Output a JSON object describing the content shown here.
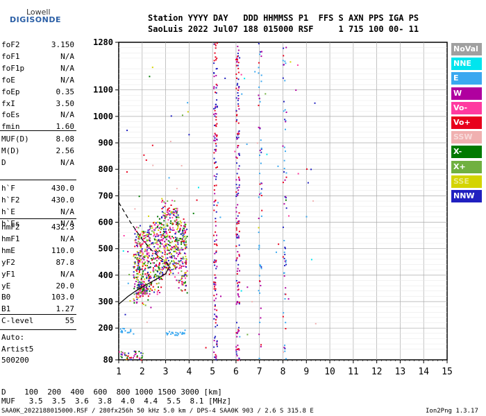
{
  "logo": {
    "top": "Lowell",
    "bottom": "DIGISONDE"
  },
  "header": {
    "labels": "Station YYYY DAY   DDD HHMMSS P1  FFS S AXN PPS IGA PS",
    "values": "SaoLuis 2022 Jul07 188 015000 RSF     1 715 100 00- 11"
  },
  "params_group1": [
    {
      "label": "foF2",
      "value": "3.150"
    },
    {
      "label": "foF1",
      "value": "N/A"
    },
    {
      "label": "foF1p",
      "value": "N/A"
    },
    {
      "label": "foE",
      "value": "N/A"
    },
    {
      "label": "foEp",
      "value": "0.35"
    },
    {
      "label": "fxI",
      "value": "3.50"
    },
    {
      "label": "foEs",
      "value": "N/A"
    },
    {
      "label": "fmin",
      "value": "1.60"
    }
  ],
  "params_group2": [
    {
      "label": "MUF(D)",
      "value": "8.08"
    },
    {
      "label": "M(D)",
      "value": "2.56"
    },
    {
      "label": "D",
      "value": "N/A"
    }
  ],
  "params_group3": [
    {
      "label": "h`F",
      "value": "430.0"
    },
    {
      "label": "h`F2",
      "value": "430.0"
    },
    {
      "label": "h`E",
      "value": "N/A"
    },
    {
      "label": "h`Es",
      "value": "N/A"
    }
  ],
  "params_group4": [
    {
      "label": "hmF2",
      "value": "432.3"
    },
    {
      "label": "hmF1",
      "value": "N/A"
    },
    {
      "label": "hmE",
      "value": "110.0"
    },
    {
      "label": "yF2",
      "value": "87.8"
    },
    {
      "label": "yF1",
      "value": "N/A"
    },
    {
      "label": "yE",
      "value": "20.0"
    },
    {
      "label": "B0",
      "value": "103.0"
    },
    {
      "label": "B1",
      "value": "1.27"
    }
  ],
  "clevel": {
    "label": "C-level",
    "value": "55"
  },
  "autoscale": {
    "line1": "Auto:",
    "line2": "Artist5",
    "line3": "500200"
  },
  "legend": [
    {
      "label": "NoVal",
      "color": "#a0a0a0"
    },
    {
      "label": "NNE",
      "color": "#00e5ee"
    },
    {
      "label": "E",
      "color": "#3aa8f0"
    },
    {
      "label": "W",
      "color": "#b0009f"
    },
    {
      "label": "Vo-",
      "color": "#ff3aa0"
    },
    {
      "label": "Vo+",
      "color": "#e8001c"
    },
    {
      "label": "SSW",
      "color": "#f0b0b0"
    },
    {
      "label": "X-",
      "color": "#007a00"
    },
    {
      "label": "X+",
      "color": "#70b040"
    },
    {
      "label": "SSE",
      "color": "#d4d400"
    },
    {
      "label": "NNW",
      "color": "#2020c0"
    }
  ],
  "footer": {
    "d_line": "D    100  200  400  600  800 1000 1500 3000 [km]",
    "muf_line": "MUF   3.5  3.5  3.6  3.8  4.0  4.4  5.5  8.1 [MHz]",
    "file_line": "SAA0K_2022188015000.RSF / 280fx256h 50 kHz 5.0 km / DPS-4 SAA0K 903 / 2.6 S 315.8 E",
    "version": "Ion2Png 1.3.17"
  },
  "chart_data": {
    "type": "scatter",
    "x_ticks": [
      "1",
      "2",
      "3",
      "4",
      "5",
      "6",
      "7",
      "8",
      "9",
      "10",
      "11",
      "12",
      "13",
      "14",
      "15"
    ],
    "y_ticks": [
      "80",
      "200",
      "300",
      "400",
      "500",
      "600",
      "700",
      "800",
      "900",
      "1000",
      "1100",
      "1280"
    ],
    "xlim": [
      1,
      15
    ],
    "ylim": [
      80,
      1280
    ],
    "grid": true,
    "x_unit": "MHz",
    "y_unit": "km",
    "traces": [
      {
        "name": "solid",
        "points": [
          [
            1.0,
            290
          ],
          [
            1.4,
            320
          ],
          [
            1.8,
            345
          ],
          [
            2.2,
            365
          ],
          [
            2.6,
            385
          ],
          [
            3.0,
            405
          ],
          [
            3.15,
            432
          ]
        ]
      },
      {
        "name": "dashed",
        "points": [
          [
            1.0,
            675
          ],
          [
            1.5,
            600
          ],
          [
            2.0,
            535
          ],
          [
            2.5,
            485
          ],
          [
            3.0,
            450
          ],
          [
            3.15,
            432
          ]
        ]
      }
    ]
  }
}
